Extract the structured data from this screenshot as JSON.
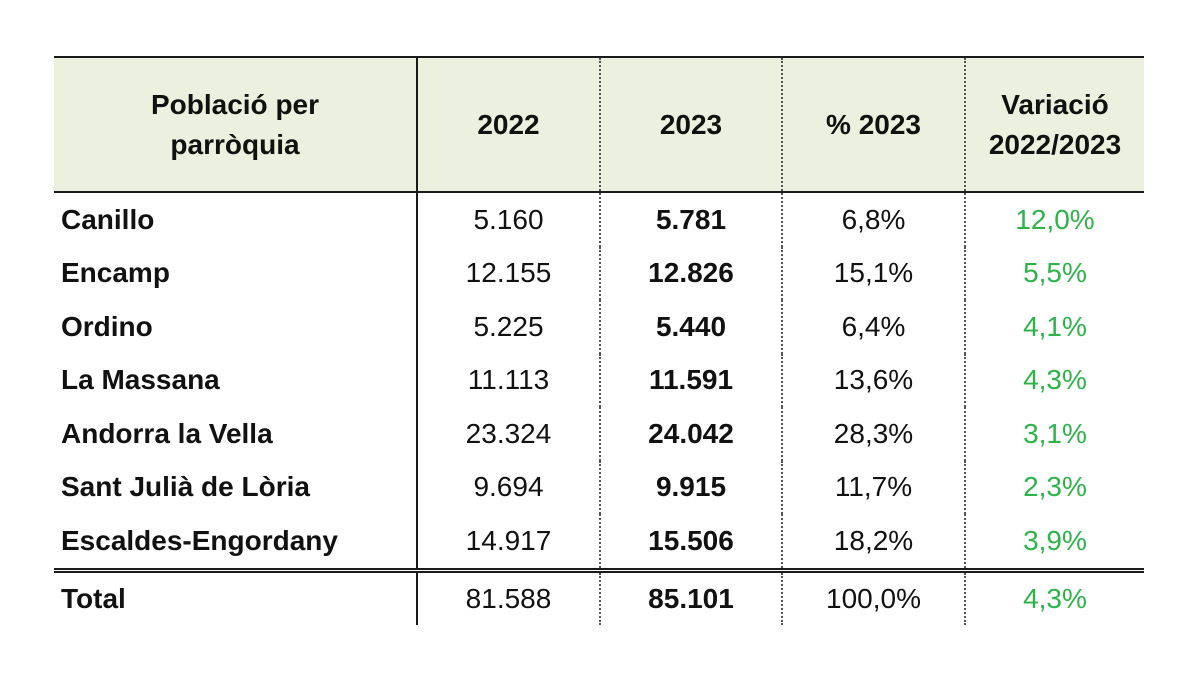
{
  "chart_data": {
    "type": "table",
    "columns": [
      "Població per parròquia",
      "2022",
      "2023",
      "% 2023",
      "Variació 2022/2023"
    ],
    "header": {
      "name_line1": "Població per",
      "name_line2": "parròquia",
      "y2022": "2022",
      "y2023": "2023",
      "pct2023": "% 2023",
      "var_line1": "Variació",
      "var_line2": "2022/2023"
    },
    "rows": [
      {
        "parish": "Canillo",
        "y2022": "5.160",
        "y2023": "5.781",
        "pct2023": "6,8%",
        "variation": "12,0%"
      },
      {
        "parish": "Encamp",
        "y2022": "12.155",
        "y2023": "12.826",
        "pct2023": "15,1%",
        "variation": "5,5%"
      },
      {
        "parish": "Ordino",
        "y2022": "5.225",
        "y2023": "5.440",
        "pct2023": "6,4%",
        "variation": "4,1%"
      },
      {
        "parish": "La Massana",
        "y2022": "11.113",
        "y2023": "11.591",
        "pct2023": "13,6%",
        "variation": "4,3%"
      },
      {
        "parish": "Andorra la Vella",
        "y2022": "23.324",
        "y2023": "24.042",
        "pct2023": "28,3%",
        "variation": "3,1%"
      },
      {
        "parish": "Sant Julià de Lòria",
        "y2022": "9.694",
        "y2023": "9.915",
        "pct2023": "11,7%",
        "variation": "2,3%"
      },
      {
        "parish": "Escaldes-Engordany",
        "y2022": "14.917",
        "y2023": "15.506",
        "pct2023": "18,2%",
        "variation": "3,9%"
      }
    ],
    "total": {
      "label": "Total",
      "y2022": "81.588",
      "y2023": "85.101",
      "pct2023": "100,0%",
      "variation": "4,3%"
    },
    "colors": {
      "header_bg": "#ebf1de",
      "variation_text": "#2eb34a",
      "text": "#111111"
    }
  }
}
